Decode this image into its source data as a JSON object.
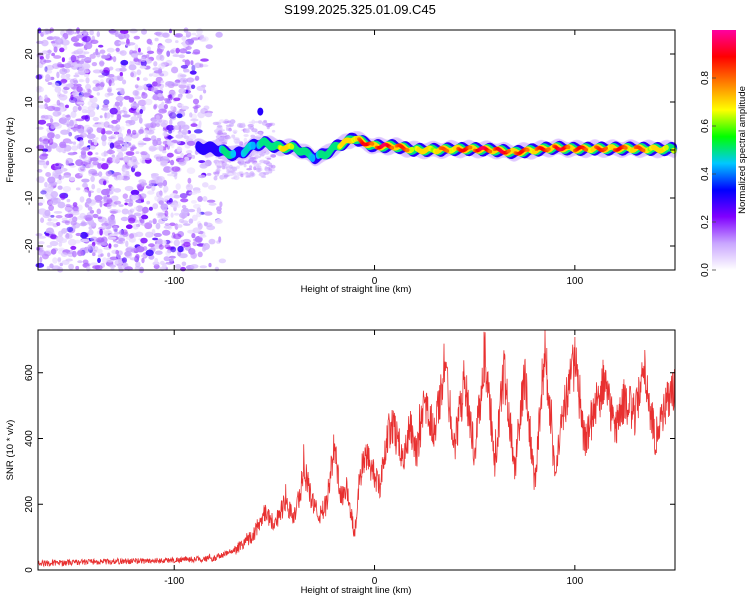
{
  "title": "S199.2025.325.01.09.C45",
  "chart_data": [
    {
      "type": "heatmap",
      "name": "spectrogram",
      "xlabel": "Height of straight line (km)",
      "ylabel": "Frequency (Hz)",
      "xlim": [
        -168,
        150
      ],
      "ylim": [
        -25,
        25
      ],
      "xticks": [
        -100,
        0,
        100
      ],
      "yticks": [
        -20,
        -10,
        0,
        10,
        20
      ],
      "colorbar": {
        "label": "Normalized spectral amplitude",
        "range": [
          0,
          1
        ],
        "ticks": [
          0.0,
          0.2,
          0.4,
          0.6,
          0.8
        ],
        "colors": [
          "#ffffff",
          "#c9a6ff",
          "#8000ff",
          "#0000ff",
          "#00c8ff",
          "#00ff00",
          "#ffff00",
          "#ff8000",
          "#ff0000",
          "#ff00a0"
        ]
      },
      "noise_region_x": [
        -168,
        -75
      ],
      "ridge": {
        "x": [
          -88,
          -80,
          -74,
          -70,
          -66,
          -60,
          -55,
          -50,
          -45,
          -40,
          -35,
          -30,
          -25,
          -20,
          -15,
          -10,
          -5,
          0,
          10,
          20,
          30,
          40,
          50,
          60,
          70,
          80,
          90,
          100,
          110,
          120,
          130,
          140,
          150
        ],
        "frequency": [
          0.5,
          0.3,
          -0.5,
          -1,
          -0.5,
          1,
          1.5,
          0.8,
          0.5,
          0.5,
          -0.5,
          -1.5,
          -1,
          0.5,
          1.5,
          2.5,
          1.5,
          0.8,
          0.8,
          0,
          0,
          0.2,
          0.2,
          0,
          -0.5,
          0,
          0.5,
          0.2,
          0.3,
          0.3,
          0.3,
          0.2,
          0.2
        ],
        "amplitude": [
          0.35,
          0.4,
          0.55,
          0.5,
          0.45,
          0.5,
          0.55,
          0.65,
          0.75,
          0.7,
          0.55,
          0.5,
          0.55,
          0.65,
          0.75,
          0.85,
          0.9,
          0.95,
          0.95,
          0.75,
          0.8,
          0.85,
          0.95,
          0.95,
          0.9,
          0.85,
          0.95,
          0.9,
          0.85,
          0.9,
          0.85,
          0.8,
          0.7
        ]
      }
    },
    {
      "type": "line",
      "name": "snr",
      "xlabel": "Height of straight line (km)",
      "ylabel": "SNR (10 * v/v)",
      "xlim": [
        -168,
        150
      ],
      "ylim": [
        0,
        730
      ],
      "xticks": [
        -100,
        0,
        100
      ],
      "yticks": [
        0,
        200,
        400,
        600
      ],
      "color": "#e83030",
      "series": [
        {
          "name": "SNR",
          "x": [
            -168,
            -140,
            -110,
            -80,
            -70,
            -60,
            -55,
            -50,
            -45,
            -40,
            -35,
            -32,
            -28,
            -24,
            -20,
            -17,
            -14,
            -10,
            -6,
            -3,
            0,
            3,
            6,
            9,
            12,
            15,
            18,
            21,
            25,
            30,
            35,
            40,
            45,
            50,
            55,
            60,
            65,
            70,
            75,
            80,
            85,
            90,
            95,
            100,
            105,
            110,
            115,
            120,
            125,
            130,
            135,
            140,
            145,
            150
          ],
          "y": [
            20,
            25,
            28,
            35,
            60,
            110,
            180,
            140,
            200,
            160,
            300,
            230,
            160,
            200,
            380,
            220,
            250,
            110,
            330,
            340,
            280,
            250,
            400,
            450,
            380,
            350,
            440,
            350,
            500,
            420,
            620,
            380,
            580,
            350,
            660,
            320,
            620,
            300,
            600,
            260,
            680,
            300,
            500,
            640,
            380,
            500,
            560,
            430,
            520,
            470,
            600,
            400,
            500,
            550
          ]
        }
      ]
    }
  ]
}
